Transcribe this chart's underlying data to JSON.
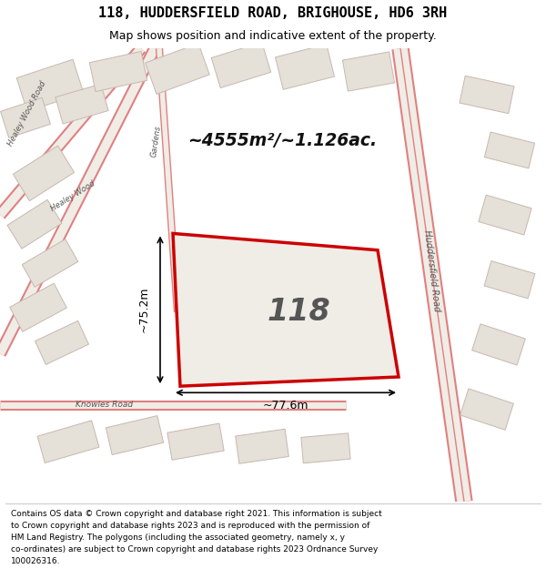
{
  "title": "118, HUDDERSFIELD ROAD, BRIGHOUSE, HD6 3RH",
  "subtitle": "Map shows position and indicative extent of the property.",
  "footer_lines": [
    "Contains OS data © Crown copyright and database right 2021. This information is subject",
    "to Crown copyright and database rights 2023 and is reproduced with the permission of",
    "HM Land Registry. The polygons (including the associated geometry, namely x, y",
    "co-ordinates) are subject to Crown copyright and database rights 2023 Ordnance Survey",
    "100026316."
  ],
  "area_label": "~4555m²/~1.126ac.",
  "plot_number": "118",
  "dim_width": "~77.6m",
  "dim_height": "~75.2m",
  "map_bg": "#f0ece6",
  "plot_edge_color": "#cc0000",
  "road_line_color": "#e08080",
  "building_fill": "#e5e0d8",
  "building_edge": "#c8b8b0",
  "road_label_huddersfield": "Huddersfield Road",
  "road_label_healey_wood_road": "Healey Wood Road",
  "road_label_gardens": "Gardens",
  "road_label_healey_wood": "Healey Wood",
  "road_label_knowles": "Knowles Road"
}
